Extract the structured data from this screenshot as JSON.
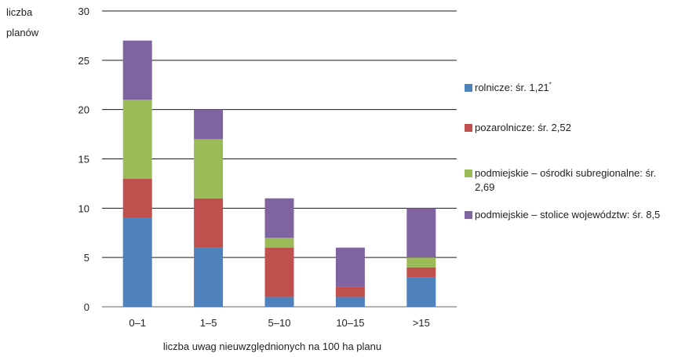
{
  "chart_data": {
    "type": "bar",
    "stacked": true,
    "ylabel_lines": [
      "liczba",
      "planów"
    ],
    "xlabel": "liczba uwag nieuwzględnionych na 100 ha planu",
    "categories": [
      "0–1",
      "1–5",
      "5–10",
      "10–15",
      ">15"
    ],
    "ylim": [
      0,
      30
    ],
    "yticks": [
      0,
      5,
      10,
      15,
      20,
      25,
      30
    ],
    "grid": true,
    "legend_position": "right",
    "series": [
      {
        "name": "rolnicze: śr. 1,21",
        "name_sup": "*",
        "color": "#4f81bd",
        "values": [
          9,
          6,
          1,
          1,
          3
        ]
      },
      {
        "name": "pozarolnicze: śr. 2,52",
        "color": "#c0504d",
        "values": [
          4,
          5,
          5,
          1,
          1
        ]
      },
      {
        "name": "podmiejskie – ośrodki subregionalne: śr. 2,69",
        "color": "#9bbb59",
        "values": [
          8,
          6,
          1,
          0,
          1
        ]
      },
      {
        "name": "podmiejskie – stolice województw: śr. 8,5",
        "color": "#8064a2",
        "values": [
          6,
          3,
          4,
          4,
          5
        ]
      }
    ]
  }
}
